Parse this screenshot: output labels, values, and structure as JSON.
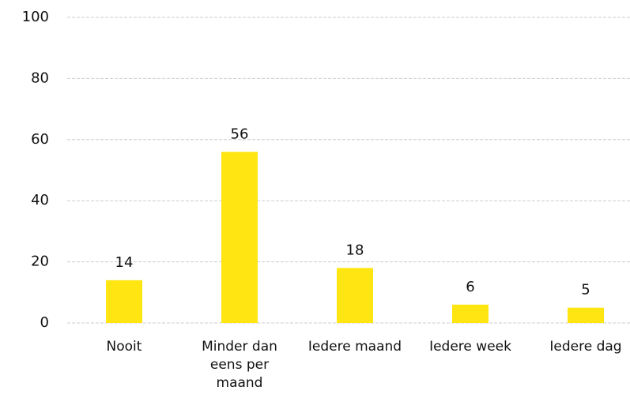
{
  "chart_data": {
    "type": "bar",
    "categories": [
      "Nooit",
      "Minder dan eens per maand",
      "Iedere maand",
      "Iedere week",
      "Iedere dag"
    ],
    "values": [
      14,
      56,
      18,
      6,
      5
    ],
    "color": "#ffe512",
    "ylim": [
      0,
      100
    ],
    "yticks": [
      0,
      20,
      40,
      60,
      80,
      100
    ],
    "grid": true
  }
}
